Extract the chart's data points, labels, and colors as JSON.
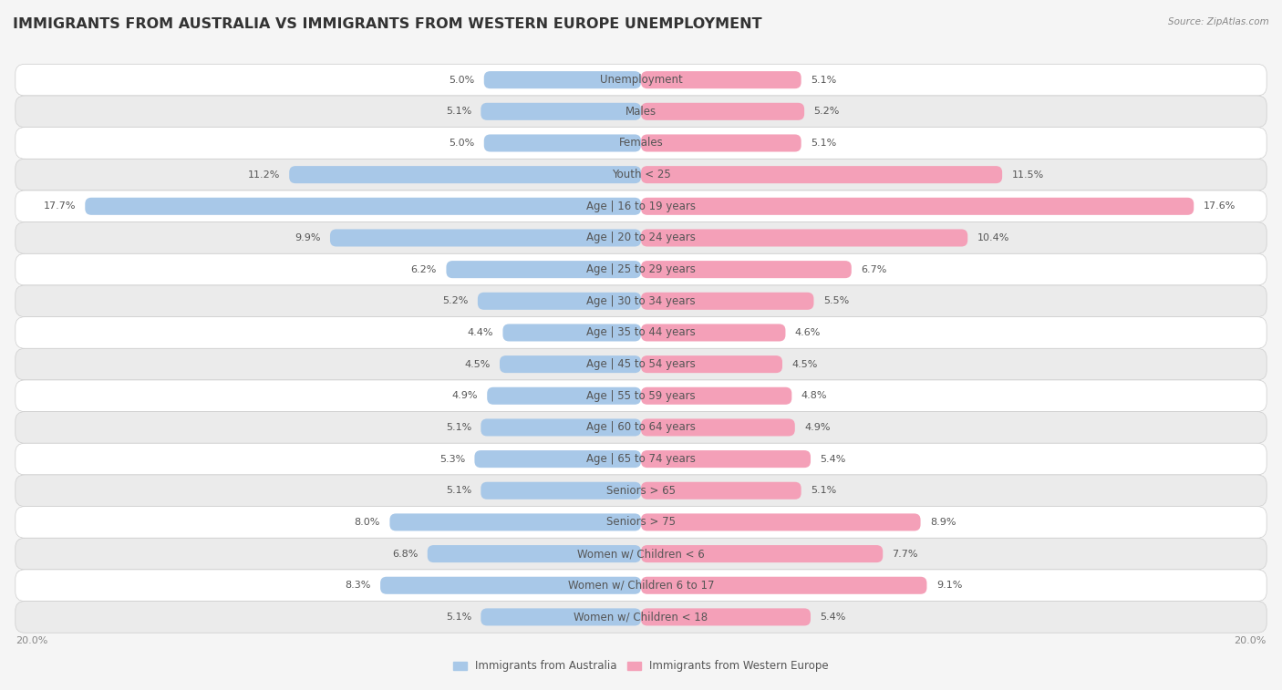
{
  "title": "IMMIGRANTS FROM AUSTRALIA VS IMMIGRANTS FROM WESTERN EUROPE UNEMPLOYMENT",
  "source": "Source: ZipAtlas.com",
  "categories": [
    "Unemployment",
    "Males",
    "Females",
    "Youth < 25",
    "Age | 16 to 19 years",
    "Age | 20 to 24 years",
    "Age | 25 to 29 years",
    "Age | 30 to 34 years",
    "Age | 35 to 44 years",
    "Age | 45 to 54 years",
    "Age | 55 to 59 years",
    "Age | 60 to 64 years",
    "Age | 65 to 74 years",
    "Seniors > 65",
    "Seniors > 75",
    "Women w/ Children < 6",
    "Women w/ Children 6 to 17",
    "Women w/ Children < 18"
  ],
  "left_values": [
    5.0,
    5.1,
    5.0,
    11.2,
    17.7,
    9.9,
    6.2,
    5.2,
    4.4,
    4.5,
    4.9,
    5.1,
    5.3,
    5.1,
    8.0,
    6.8,
    8.3,
    5.1
  ],
  "right_values": [
    5.1,
    5.2,
    5.1,
    11.5,
    17.6,
    10.4,
    6.7,
    5.5,
    4.6,
    4.5,
    4.8,
    4.9,
    5.4,
    5.1,
    8.9,
    7.7,
    9.1,
    5.4
  ],
  "left_color": "#a8c8e8",
  "right_color": "#f4a0b8",
  "left_label": "Immigrants from Australia",
  "right_label": "Immigrants from Western Europe",
  "max_val": 20.0,
  "bg_color": "#f5f5f5",
  "row_colors": [
    "#ffffff",
    "#ebebeb"
  ],
  "title_fontsize": 11.5,
  "label_fontsize": 8.5,
  "value_fontsize": 8.0,
  "source_fontsize": 7.5
}
